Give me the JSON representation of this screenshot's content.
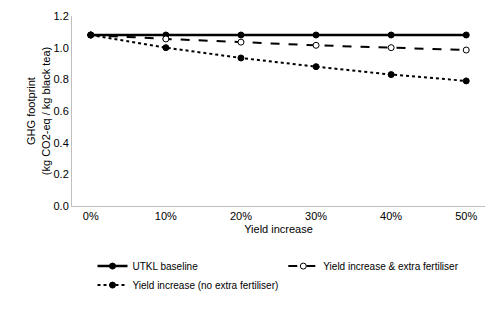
{
  "chart_data": {
    "type": "line",
    "x_label": "Yield increase",
    "y_label": "GHG footprint (kg CO2-eq / kg black tea)",
    "categories": [
      "0%",
      "10%",
      "20%",
      "30%",
      "40%",
      "50%"
    ],
    "series": [
      {
        "name": "UTKL baseline",
        "color": "#000000",
        "line_style": "solid",
        "marker": "circle",
        "values": [
          1.08,
          1.08,
          1.08,
          1.08,
          1.08,
          1.08
        ]
      },
      {
        "name": "Yield increase & extra fertiliser",
        "color": "#000000",
        "line_style": "dash",
        "marker": "open_circle",
        "values": [
          1.08,
          1.055,
          1.035,
          1.015,
          1.0,
          0.985
        ]
      },
      {
        "name": "Yield increase (no extra fertiliser)",
        "color": "#000000",
        "line_style": "dot",
        "marker": "circle",
        "values": [
          1.08,
          1.0,
          0.935,
          0.88,
          0.83,
          0.79
        ]
      }
    ],
    "ylim": [
      0,
      1.2
    ],
    "yticks": [
      {
        "value": 0,
        "label": "0.0"
      },
      0.2,
      0.4,
      0.6,
      0.8,
      {
        "value": 1,
        "label": "1.0"
      },
      1.2
    ],
    "grid": false,
    "legend": "bottom"
  }
}
